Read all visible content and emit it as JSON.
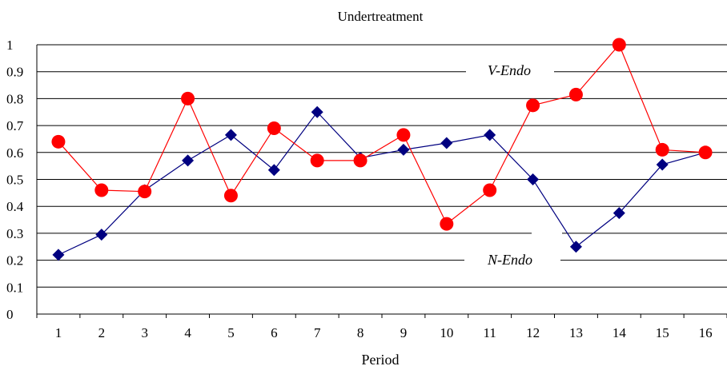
{
  "chart_data": {
    "type": "line",
    "title": "Undertreatment",
    "xlabel": "Period",
    "ylabel": "",
    "categories": [
      "1",
      "2",
      "3",
      "4",
      "5",
      "6",
      "7",
      "8",
      "9",
      "10",
      "11",
      "12",
      "13",
      "14",
      "15",
      "16"
    ],
    "yticks": [
      "0",
      "0.1",
      "0.2",
      "0.3",
      "0.4",
      "0.5",
      "0.6",
      "0.7",
      "0.8",
      "0.9",
      "1"
    ],
    "ylim": [
      0,
      1
    ],
    "grid": true,
    "series": [
      {
        "name": "V-Endo",
        "color": "#ff0000",
        "marker": "circle",
        "values": [
          0.64,
          0.46,
          0.455,
          0.8,
          0.44,
          0.69,
          0.57,
          0.57,
          0.665,
          0.335,
          0.46,
          0.775,
          0.815,
          1.0,
          0.61,
          0.6
        ]
      },
      {
        "name": "N-Endo",
        "color": "#000080",
        "marker": "diamond",
        "values": [
          0.22,
          0.295,
          0.46,
          0.57,
          0.665,
          0.535,
          0.75,
          0.58,
          0.61,
          0.635,
          0.665,
          0.5,
          0.25,
          0.375,
          0.555,
          0.6
        ]
      }
    ]
  }
}
